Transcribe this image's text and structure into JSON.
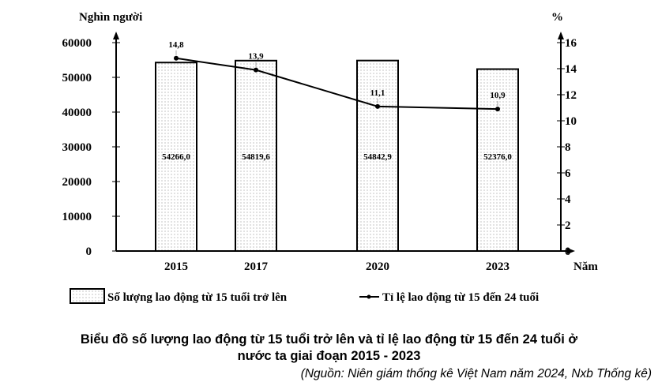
{
  "chart_data": {
    "type": "bar+line",
    "categories": [
      "2015",
      "2017",
      "2020",
      "2023"
    ],
    "series": [
      {
        "name": "Số lượng lao động từ 15 tuổi trở lên",
        "type": "bar",
        "axis": "left",
        "values": [
          54266.0,
          54819.6,
          54842.9,
          52376.0
        ],
        "labels": [
          "54266,0",
          "54819,6",
          "54842,9",
          "52376,0"
        ]
      },
      {
        "name": "Tỉ lệ lao động từ 15 đến 24 tuổi",
        "type": "line",
        "axis": "right",
        "values": [
          14.8,
          13.9,
          11.1,
          10.9
        ],
        "labels": [
          "14,8",
          "13,9",
          "11,1",
          "10,9"
        ]
      }
    ],
    "ylabel_left": "Nghìn người",
    "ylabel_right": "%",
    "xlabel": "Năm",
    "ylim_left": [
      0,
      60000
    ],
    "ylim_right": [
      0,
      16
    ],
    "yticks_left": [
      "0",
      "10000",
      "20000",
      "30000",
      "40000",
      "50000",
      "60000"
    ],
    "yticks_right": [
      "0",
      "2",
      "4",
      "6",
      "8",
      "10",
      "12",
      "14",
      "16"
    ],
    "legend_position": "bottom",
    "grid": false
  },
  "caption": {
    "line1": "Biểu đồ số lượng lao động từ 15 tuổi trở lên và tỉ lệ lao động từ 15 đến 24 tuổi ở",
    "line2": "nước ta giai đoạn 2015 - 2023",
    "source": "(Nguồn: Niên giám thống kê Việt Nam năm 2024, Nxb Thống kê)"
  }
}
